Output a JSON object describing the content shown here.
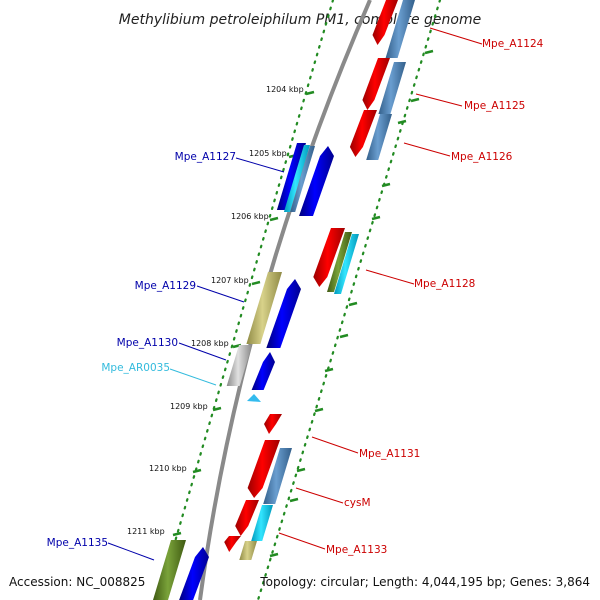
{
  "title": "Methylibium petroleiphilum PM1, complete genome",
  "footer": {
    "accession": "Accession: NC_008825",
    "topology": "Topology: circular; Length: 4,044,195 bp; Genes: 3,864"
  },
  "scale": {
    "ticks": [
      "1204 kbp",
      "1205 kbp",
      "1206 kbp",
      "1207 kbp",
      "1208 kbp",
      "1209 kbp",
      "1210 kbp",
      "1211 kbp"
    ]
  },
  "genes": {
    "left": [
      {
        "label": "Mpe_A1127",
        "color": "#0000aa"
      },
      {
        "label": "Mpe_A1129",
        "color": "#0000aa"
      },
      {
        "label": "Mpe_A1130",
        "color": "#0000aa"
      },
      {
        "label": "Mpe_AR0035",
        "color": "#33bbdd"
      },
      {
        "label": "Mpe_A1135",
        "color": "#0000aa"
      }
    ],
    "right": [
      {
        "label": "Mpe_A1124",
        "color": "#cc0000"
      },
      {
        "label": "Mpe_A1125",
        "color": "#cc0000"
      },
      {
        "label": "Mpe_A1126",
        "color": "#cc0000"
      },
      {
        "label": "Mpe_A1128",
        "color": "#cc0000"
      },
      {
        "label": "Mpe_A1131",
        "color": "#cc0000"
      },
      {
        "label": "cysM",
        "color": "#cc0000"
      },
      {
        "label": "Mpe_A1133",
        "color": "#cc0000"
      }
    ]
  },
  "colors": {
    "forward": "#0000ee",
    "reverse": "#ee0000",
    "cyan": "#00ccee",
    "steelblue": "#4f86b8",
    "olive": "#bdb76b",
    "darkolive": "#6b8e23",
    "gray": "#b0b0b0",
    "backbone": "#808080",
    "tick": "#228b22"
  }
}
